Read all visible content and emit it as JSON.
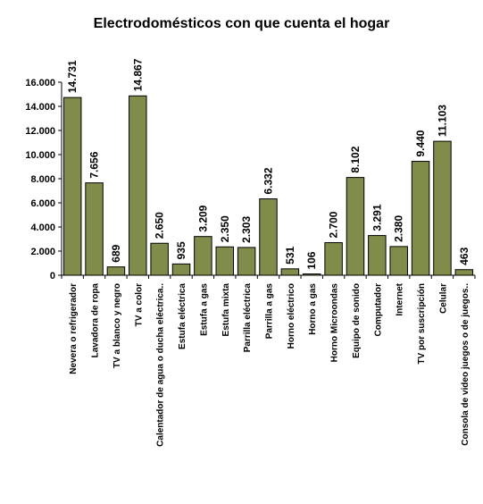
{
  "chart_data": {
    "type": "bar",
    "title": "Electrodomésticos con que cuenta el hogar",
    "xlabel": "",
    "ylabel": "",
    "ylim": [
      0,
      16000
    ],
    "yticks": [
      0,
      2000,
      4000,
      6000,
      8000,
      10000,
      12000,
      14000,
      16000
    ],
    "ytick_labels": [
      "0",
      "2.000",
      "4.000",
      "6.000",
      "8.000",
      "10.000",
      "12.000",
      "14.000",
      "16.000"
    ],
    "grid": false,
    "legend": "none",
    "bar_color": "#7f8c4a",
    "bar_edge_color": "#000000",
    "categories": [
      "Nevera o refrigerador",
      "Lavadora de ropa",
      "TV a blanco y negro",
      "TV a color",
      "Calentador de agua o ducha eléctrica..",
      "Estufa eléctrica",
      "Estufa a gas",
      "Estufa mixta",
      "Parrilla eléctrica",
      "Parrilla a gas",
      "Horno eléctrico",
      "Horno a gas",
      "Horno Microondas",
      "Equipo de sonido",
      "Computador",
      "Internet",
      "TV por suscripción",
      "Celular",
      "Consola de video juegos o de juegos.."
    ],
    "values": [
      14731,
      7656,
      689,
      14867,
      2650,
      935,
      3209,
      2350,
      2303,
      6332,
      531,
      106,
      2700,
      8102,
      3291,
      2380,
      9440,
      11103,
      463
    ],
    "value_labels": [
      "14.731",
      "7.656",
      "689",
      "14.867",
      "2.650",
      "935",
      "3.209",
      "2.350",
      "2.303",
      "6.332",
      "531",
      "106",
      "2.700",
      "8.102",
      "3.291",
      "2.380",
      "9.440",
      "11.103",
      "463"
    ]
  }
}
